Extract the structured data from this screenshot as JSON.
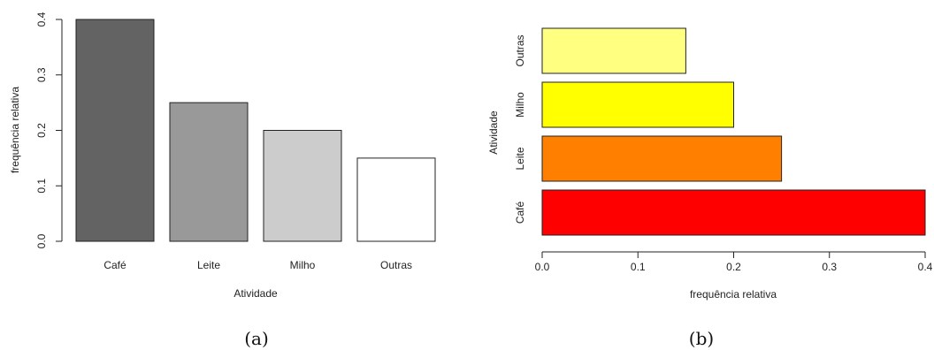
{
  "charts": [
    {
      "type": "bar",
      "orientation": "vertical",
      "categories": [
        "Café",
        "Leite",
        "Milho",
        "Outras"
      ],
      "values": [
        0.4,
        0.25,
        0.2,
        0.15
      ],
      "colors": [
        "#636363",
        "#999999",
        "#cccccc",
        "#ffffff"
      ],
      "xlabel": "Atividade",
      "ylabel": "frequência relativa",
      "ylim": [
        0,
        0.4
      ],
      "yticks": [
        "0.0",
        "0.1",
        "0.2",
        "0.3",
        "0.4"
      ],
      "caption": "(a)"
    },
    {
      "type": "bar",
      "orientation": "horizontal",
      "categories": [
        "Café",
        "Leite",
        "Milho",
        "Outras"
      ],
      "values": [
        0.4,
        0.25,
        0.2,
        0.15
      ],
      "colors": [
        "#ff0000",
        "#ff8000",
        "#ffff00",
        "#ffff80"
      ],
      "xlabel": "frequência relativa",
      "ylabel": "Atividade",
      "xlim": [
        0,
        0.4
      ],
      "xticks": [
        "0.0",
        "0.1",
        "0.2",
        "0.3",
        "0.4"
      ],
      "caption": "(b)"
    }
  ]
}
